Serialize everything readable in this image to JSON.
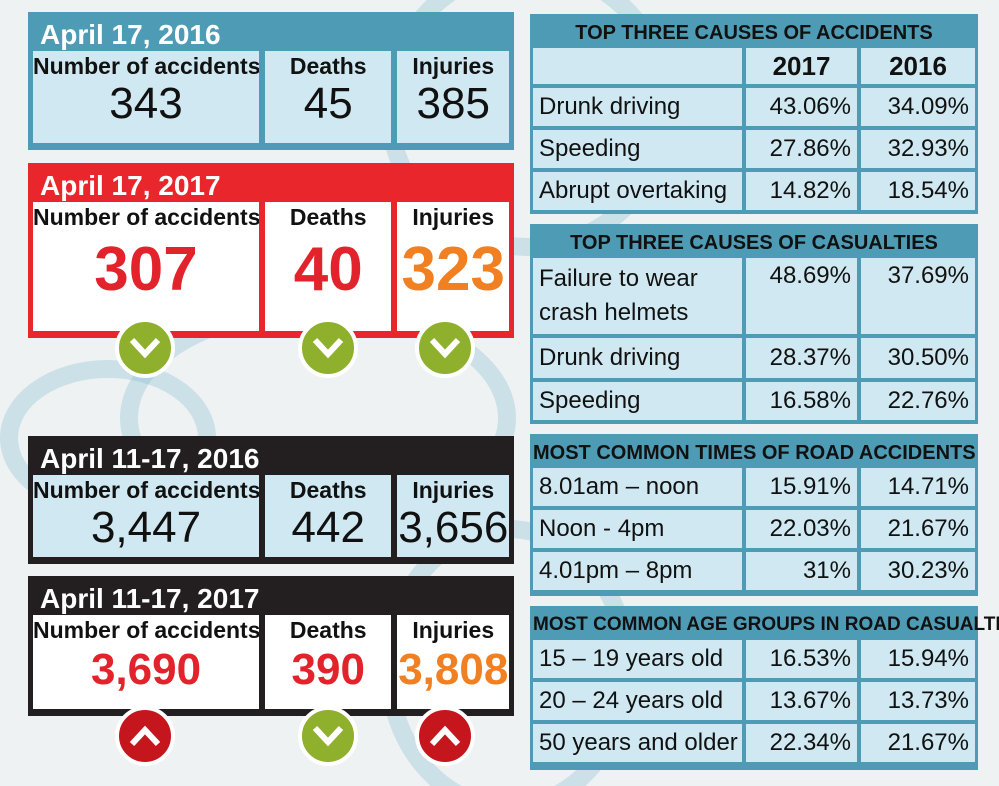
{
  "colors": {
    "blue": "#4e9bb5",
    "light": "#cfe8f1",
    "red": "#e2232b",
    "orange": "#f08022",
    "black": "#231f20",
    "green": "#8fb02c"
  },
  "panels": [
    {
      "date": "April 17, 2016",
      "accidents_label": "Number of accidents",
      "accidents": "343",
      "deaths_label": "Deaths",
      "deaths": "45",
      "injuries_label": "Injuries",
      "injuries": "385"
    },
    {
      "date": "April 17, 2017",
      "accidents_label": "Number of accidents",
      "accidents": "307",
      "deaths_label": "Deaths",
      "deaths": "40",
      "injuries_label": "Injuries",
      "injuries": "323",
      "trend": [
        "down-icon",
        "down-icon",
        "down-icon"
      ]
    },
    {
      "date": "April 11-17, 2016",
      "accidents_label": "Number of accidents",
      "accidents": "3,447",
      "deaths_label": "Deaths",
      "deaths": "442",
      "injuries_label": "Injuries",
      "injuries": "3,656"
    },
    {
      "date": "April 11-17, 2017",
      "accidents_label": "Number of accidents",
      "accidents": "3,690",
      "deaths_label": "Deaths",
      "deaths": "390",
      "injuries_label": "Injuries",
      "injuries": "3,808",
      "trend": [
        "up-icon",
        "down-icon",
        "up-icon"
      ]
    }
  ],
  "tables": [
    {
      "title": "TOP THREE CAUSES OF ACCIDENTS",
      "year1": "2017",
      "year2": "2016",
      "rows": [
        {
          "label": "Drunk driving",
          "v1": "43.06%",
          "v2": "34.09%"
        },
        {
          "label": "Speeding",
          "v1": "27.86%",
          "v2": "32.93%"
        },
        {
          "label": "Abrupt overtaking",
          "v1": "14.82%",
          "v2": "18.54%"
        }
      ]
    },
    {
      "title": "TOP THREE CAUSES OF CASUALTIES",
      "rows": [
        {
          "label": "Failure to wear",
          "label2": "crash helmets",
          "v1": "48.69%",
          "v2": "37.69%"
        },
        {
          "label": "Drunk driving",
          "v1": "28.37%",
          "v2": "30.50%"
        },
        {
          "label": "Speeding",
          "v1": "16.58%",
          "v2": "22.76%"
        }
      ]
    },
    {
      "title": "MOST COMMON TIMES OF ROAD ACCIDENTS",
      "rows": [
        {
          "label": "8.01am – noon",
          "v1": "15.91%",
          "v2": "14.71%"
        },
        {
          "label": "Noon - 4pm",
          "v1": "22.03%",
          "v2": "21.67%"
        },
        {
          "label": "4.01pm – 8pm",
          "v1": "31%",
          "v2": "30.23%"
        }
      ]
    },
    {
      "title": "MOST COMMON AGE GROUPS IN ROAD CASUALTIES",
      "rows": [
        {
          "label": "15 – 19 years old",
          "v1": "16.53%",
          "v2": "15.94%"
        },
        {
          "label": "20 – 24 years old",
          "v1": "13.67%",
          "v2": "13.73%"
        },
        {
          "label": "50 years and older",
          "v1": "22.34%",
          "v2": "21.67%"
        }
      ]
    }
  ]
}
